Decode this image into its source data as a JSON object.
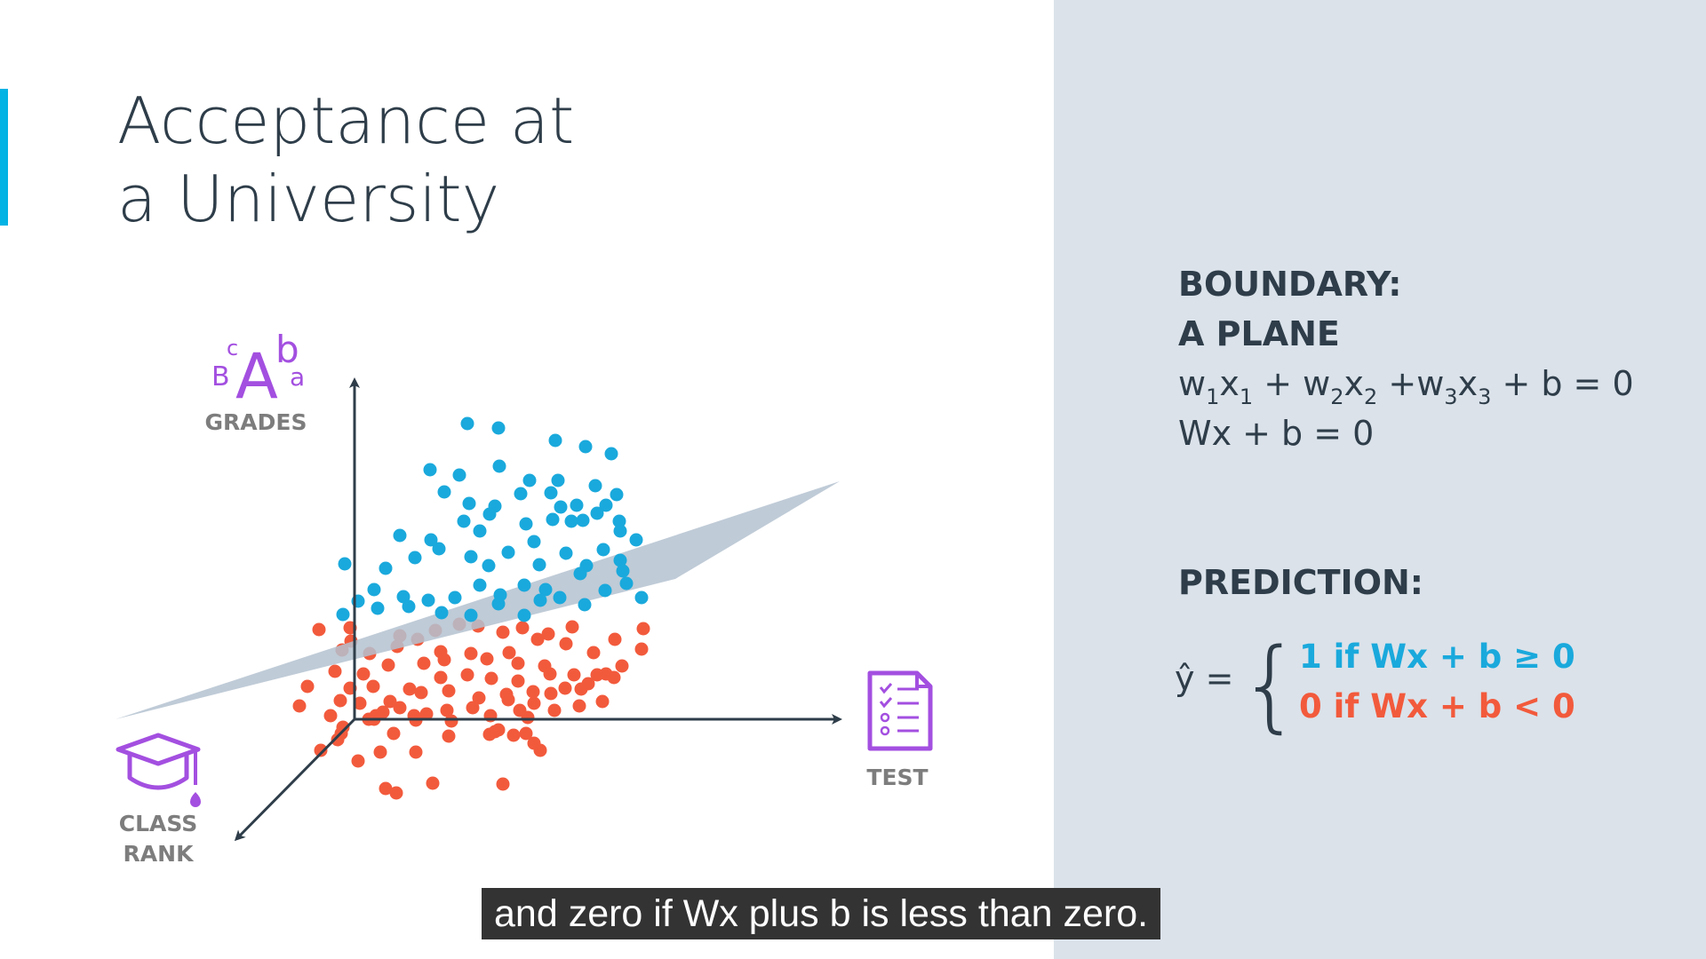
{
  "slide": {
    "title_line1": "Acceptance at",
    "title_line2": "a University"
  },
  "diagram": {
    "axes": {
      "grades": "GRADES",
      "test": "TEST",
      "class_rank_line1": "CLASS",
      "class_rank_line2": "RANK"
    },
    "grades_icon_letters": [
      "c",
      "B",
      "A",
      "b",
      "a"
    ],
    "colors": {
      "accepted": "#1aa9dc",
      "rejected": "#f25a3c",
      "icon": "#a34fe0",
      "plane": "#b4c2d0",
      "axis": "#2e3d49",
      "accent": "#02b3e4",
      "panel": "#dbe2ea"
    },
    "icons": [
      "grades-letters-icon",
      "test-document-icon",
      "graduation-cap-icon"
    ]
  },
  "boundary": {
    "heading_line1": "BOUNDARY:",
    "heading_line2": "A PLANE",
    "equation_terms": [
      "w",
      "1",
      "x",
      "1",
      " + w",
      "2",
      "x",
      "2",
      " +w",
      "3",
      "x",
      "3",
      " + b = 0"
    ],
    "vector_equation": "Wx + b = 0"
  },
  "prediction": {
    "heading": "PREDICTION:",
    "lhs": "ŷ =",
    "brace": "{",
    "case_positive": "1 if Wx + b ≥ 0",
    "case_negative": "0 if Wx + b < 0"
  },
  "caption": {
    "text": "and zero if Wx plus b is less than zero."
  }
}
